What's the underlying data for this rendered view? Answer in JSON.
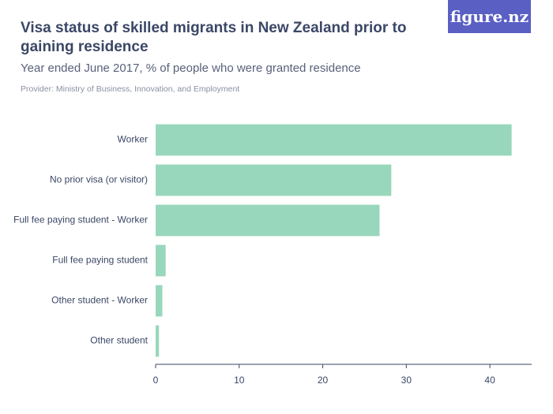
{
  "logo": "figure.nz",
  "chart_data": {
    "type": "bar",
    "orientation": "horizontal",
    "title": "Visa status of skilled migrants in New Zealand prior to gaining residence",
    "subtitle": "Year ended June 2017, % of people who were granted residence",
    "provider": "Provider: Ministry of Business, Innovation, and Employment",
    "categories": [
      "Worker",
      "No prior visa (or visitor)",
      "Full fee paying student - Worker",
      "Full fee paying student",
      "Other student - Worker",
      "Other student"
    ],
    "values": [
      42.6,
      28.2,
      26.8,
      1.2,
      0.8,
      0.4
    ],
    "color": "#98d7bb",
    "xlim": [
      0,
      45
    ],
    "xticks": [
      0,
      10,
      20,
      30,
      40
    ],
    "grid": false
  }
}
